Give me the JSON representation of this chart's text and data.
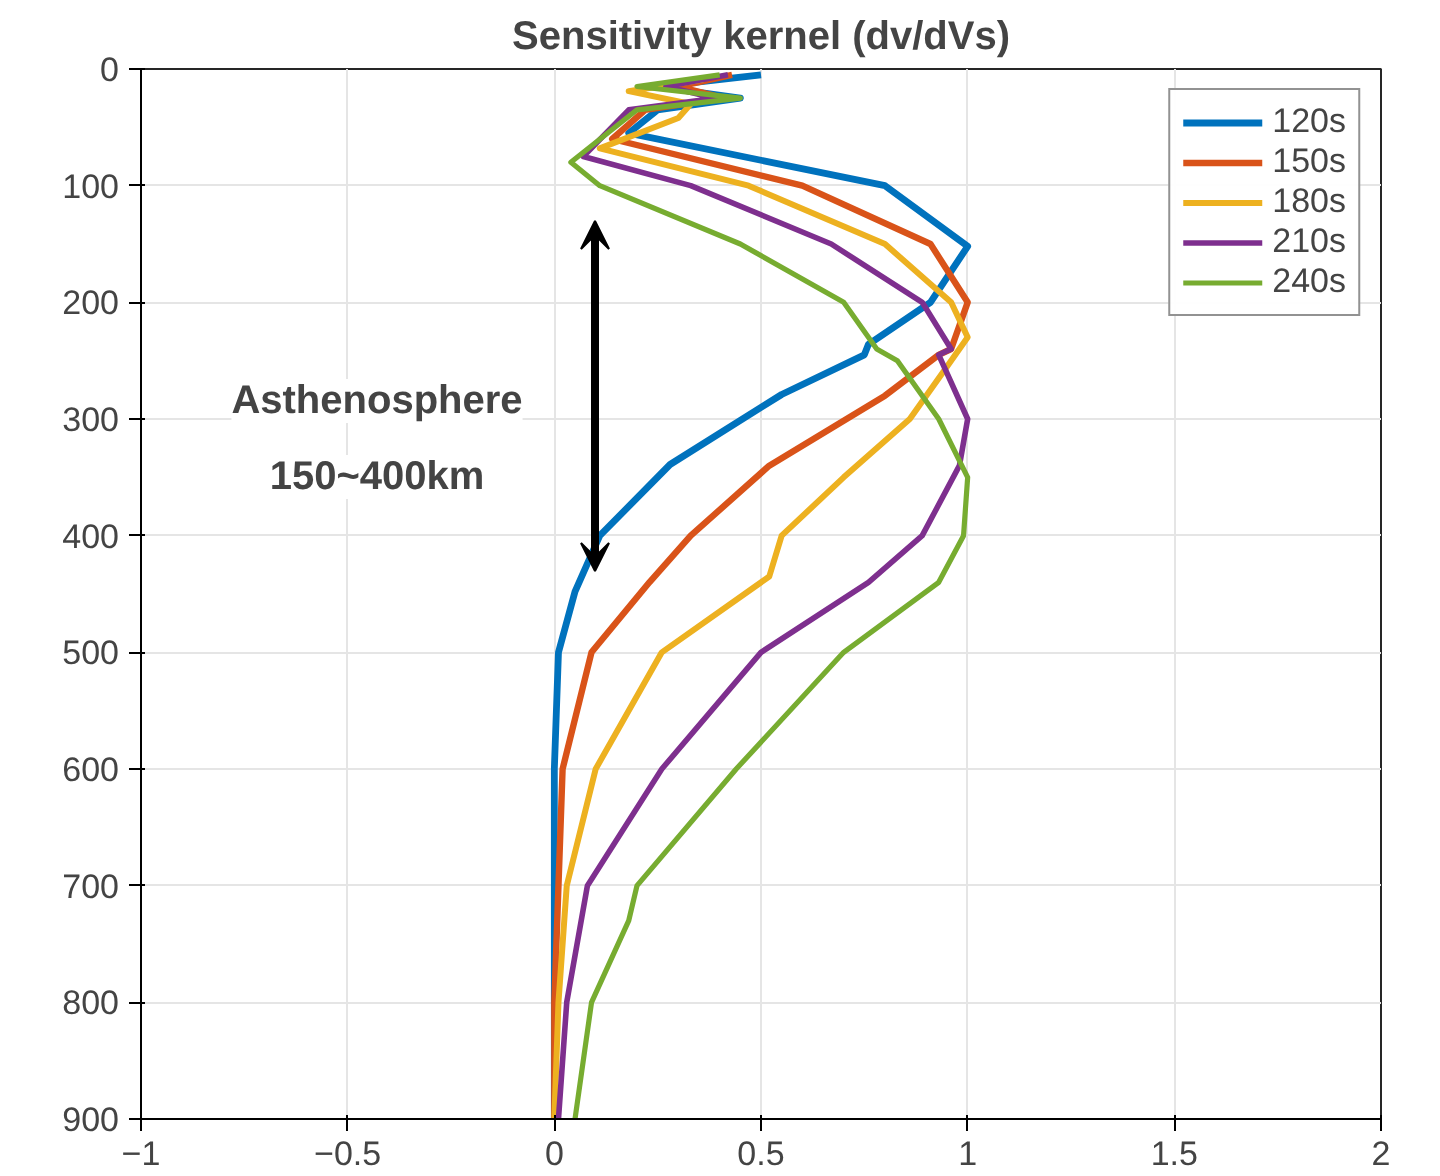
{
  "chart_data": {
    "type": "line",
    "title": "Sensitivity kernel (dv/dVs)",
    "xlim": [
      -1,
      2
    ],
    "xticks": [
      -1,
      -0.5,
      0,
      0.5,
      1,
      1.5,
      2
    ],
    "ylim": [
      900,
      0
    ],
    "yticks": [
      0,
      100,
      200,
      300,
      400,
      500,
      600,
      700,
      800,
      900
    ],
    "grid": true,
    "legend": "top right",
    "line_style": "solid",
    "annotations": [
      "Asthenosphere\n150~400km"
    ],
    "series": [
      {
        "name": "120s",
        "color": "#0072bd",
        "x": [
          0.5,
          0.25,
          0.45,
          0.25,
          0.18,
          0.8,
          1.0,
          0.91,
          0.76,
          0.75,
          0.55,
          0.28,
          0.11,
          0.05,
          0.01,
          0.0,
          0.0,
          0.0,
          0.0
        ],
        "values": [
          5,
          15,
          25,
          35,
          55,
          100,
          152,
          200,
          236,
          245,
          279,
          339,
          400,
          448,
          500,
          600,
          700,
          800,
          900
        ]
      },
      {
        "name": "150s",
        "color": "#d95319",
        "x": [
          0.43,
          0.3,
          0.41,
          0.22,
          0.14,
          0.6,
          0.91,
          1.0,
          0.96,
          0.93,
          0.8,
          0.52,
          0.33,
          0.23,
          0.09,
          0.02,
          0.01,
          0.0,
          0.0
        ],
        "values": [
          5,
          15,
          25,
          35,
          60,
          100,
          150,
          200,
          240,
          245,
          280,
          340,
          400,
          440,
          500,
          600,
          700,
          800,
          900
        ]
      },
      {
        "name": "180s",
        "color": "#edb120",
        "x": [
          0.36,
          0.18,
          0.33,
          0.3,
          0.11,
          0.47,
          0.8,
          0.96,
          1.0,
          0.96,
          0.86,
          0.7,
          0.55,
          0.52,
          0.26,
          0.1,
          0.03,
          0.01,
          0.0
        ],
        "values": [
          9,
          19,
          30,
          42,
          68,
          100,
          150,
          200,
          230,
          250,
          300,
          350,
          400,
          435,
          500,
          600,
          700,
          800,
          900
        ]
      },
      {
        "name": "210s",
        "color": "#7e2f8e",
        "x": [
          0.42,
          0.27,
          0.39,
          0.18,
          0.07,
          0.33,
          0.67,
          0.89,
          0.96,
          0.93,
          1.0,
          0.98,
          0.89,
          0.76,
          0.5,
          0.26,
          0.08,
          0.03,
          0.01
        ],
        "values": [
          5,
          15,
          25,
          35,
          75,
          100,
          150,
          200,
          240,
          245,
          300,
          340,
          400,
          440,
          500,
          600,
          700,
          800,
          900
        ]
      },
      {
        "name": "240s",
        "color": "#77ac30",
        "x": [
          0.4,
          0.2,
          0.45,
          0.2,
          0.04,
          0.11,
          0.45,
          0.7,
          0.78,
          0.83,
          0.93,
          1.0,
          0.99,
          0.93,
          0.7,
          0.44,
          0.2,
          0.18,
          0.09,
          0.05
        ],
        "values": [
          5,
          15,
          25,
          35,
          80,
          100,
          150,
          200,
          240,
          250,
          300,
          350,
          400,
          440,
          500,
          600,
          700,
          730,
          800,
          900
        ]
      }
    ]
  }
}
